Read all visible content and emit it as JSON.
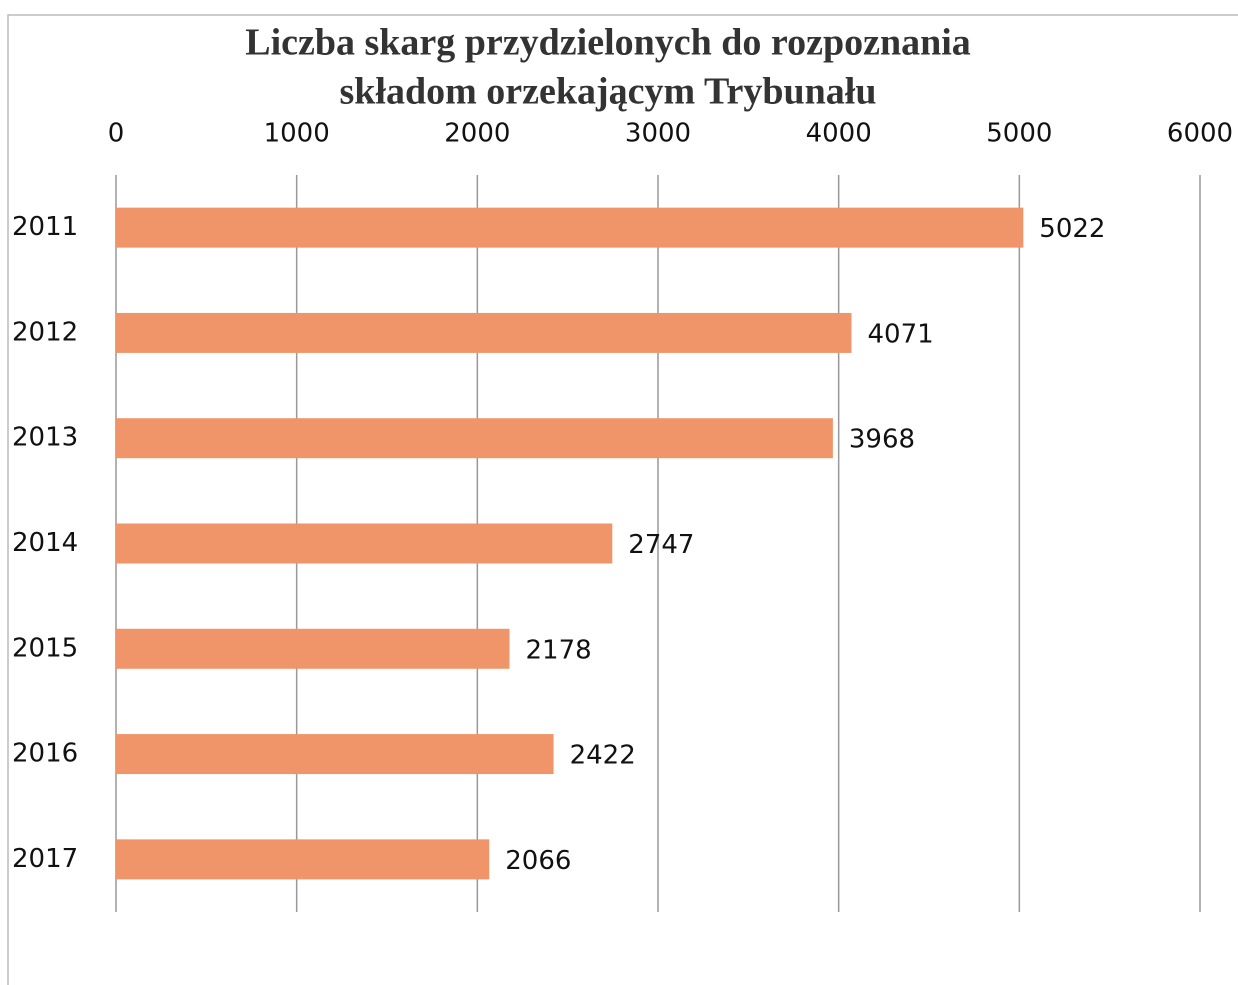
{
  "chart_data": {
    "type": "bar",
    "orientation": "horizontal",
    "title": [
      "Liczba skarg przydzielonych do rozpoznania",
      "składom orzekającym Trybunału"
    ],
    "categories": [
      "2011",
      "2012",
      "2013",
      "2014",
      "2015",
      "2016",
      "2017"
    ],
    "values": [
      5022,
      4071,
      3968,
      2747,
      2178,
      2422,
      2066
    ],
    "color": "#f0956a",
    "xlim": [
      0,
      6000
    ],
    "xticks": [
      0,
      1000,
      2000,
      3000,
      4000,
      5000,
      6000
    ],
    "grid": true
  }
}
